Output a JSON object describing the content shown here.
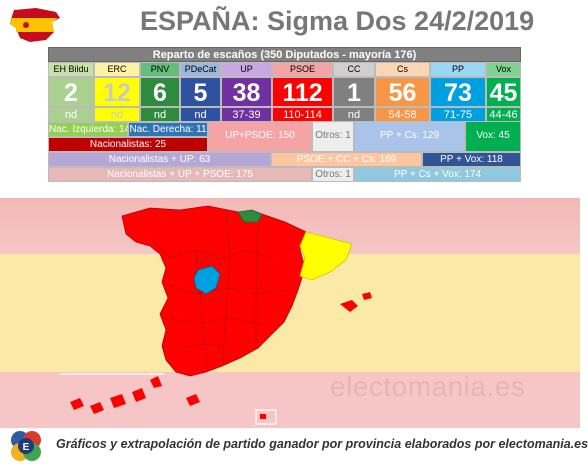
{
  "title": "ESPAÑA: Sigma Dos 24/2/2019",
  "table_header": "Reparto de escaños (350 Diputados - mayoría 176)",
  "parties": [
    {
      "name": "EH Bildu",
      "seats": "2",
      "range": "nd",
      "name_bg": "#c6e0a8",
      "bg": "#a9d08e",
      "seats_color": "#ffffff"
    },
    {
      "name": "ERC",
      "seats": "12",
      "range": "nd",
      "name_bg": "#fff2a6",
      "bg": "#ffff00",
      "seats_color": "#c9c9c9"
    },
    {
      "name": "PNV",
      "seats": "6",
      "range": "nd",
      "name_bg": "#63be7b",
      "bg": "#2e8b3e",
      "seats_color": "#ffffff"
    },
    {
      "name": "PDeCat",
      "seats": "5",
      "range": "nd",
      "name_bg": "#9db8e0",
      "bg": "#2f52a0",
      "seats_color": "#ffffff"
    },
    {
      "name": "UP",
      "seats": "38",
      "range": "37-39",
      "name_bg": "#c9a7e0",
      "bg": "#7030a0",
      "seats_color": "#ffffff"
    },
    {
      "name": "PSOE",
      "seats": "112",
      "range": "110-114",
      "name_bg": "#f4a4a4",
      "bg": "#ff0000",
      "seats_color": "#ffffff"
    },
    {
      "name": "CC",
      "seats": "1",
      "range": "nd",
      "name_bg": "#d0cece",
      "bg": "#808080",
      "seats_color": "#ffffff"
    },
    {
      "name": "Cs",
      "seats": "56",
      "range": "54-58",
      "name_bg": "#fcd5b4",
      "bg": "#f79646",
      "seats_color": "#ffffff"
    },
    {
      "name": "PP",
      "seats": "73",
      "range": "71-75",
      "name_bg": "#9bd7f4",
      "bg": "#00a0e0",
      "seats_color": "#ffffff"
    },
    {
      "name": "Vox",
      "seats": "45",
      "range": "44-46",
      "name_bg": "#7ed48e",
      "bg": "#00b050",
      "seats_color": "#ffffff"
    }
  ],
  "aggregates": {
    "nac_izquierda": "Nac. Izquierda: 14",
    "nac_derecha": "Nac. Derecha: 11",
    "nacionalistas": "Nacionalistas: 25",
    "up_psoe": "UP+PSOE: 150",
    "otros_1": "Otros: 1",
    "pp_cs": "PP + Cs: 129",
    "vox": "Vox: 45",
    "nac_up": "Nacionalistas + UP: 63",
    "psoe_cc_cs": "PSOE + CC + Cs: 169",
    "pp_vox": "PP + Vox: 118",
    "nac_up_psoe": "Nacionalistas + UP + PSOE: 175",
    "otros_2": "Otros: 1",
    "pp_cs_vox": "PP + Cs + Vox: 174"
  },
  "colors": {
    "flag_red": "#c60b1e",
    "flag_yellow": "#ffc400",
    "psoe_red": "#ff0000",
    "vox_green": "#00b050",
    "pp_blue": "#00a0e0",
    "erc_yellow": "#ffff00",
    "pnv_green": "#2e8b3e"
  },
  "watermark": "electomania.es",
  "footer": "Gráficos y extrapolación de partido ganador por provincia elaborados por electomania.es",
  "icons": {
    "flag": "spain-flag-icon",
    "logo": "electomania-logo-icon"
  }
}
